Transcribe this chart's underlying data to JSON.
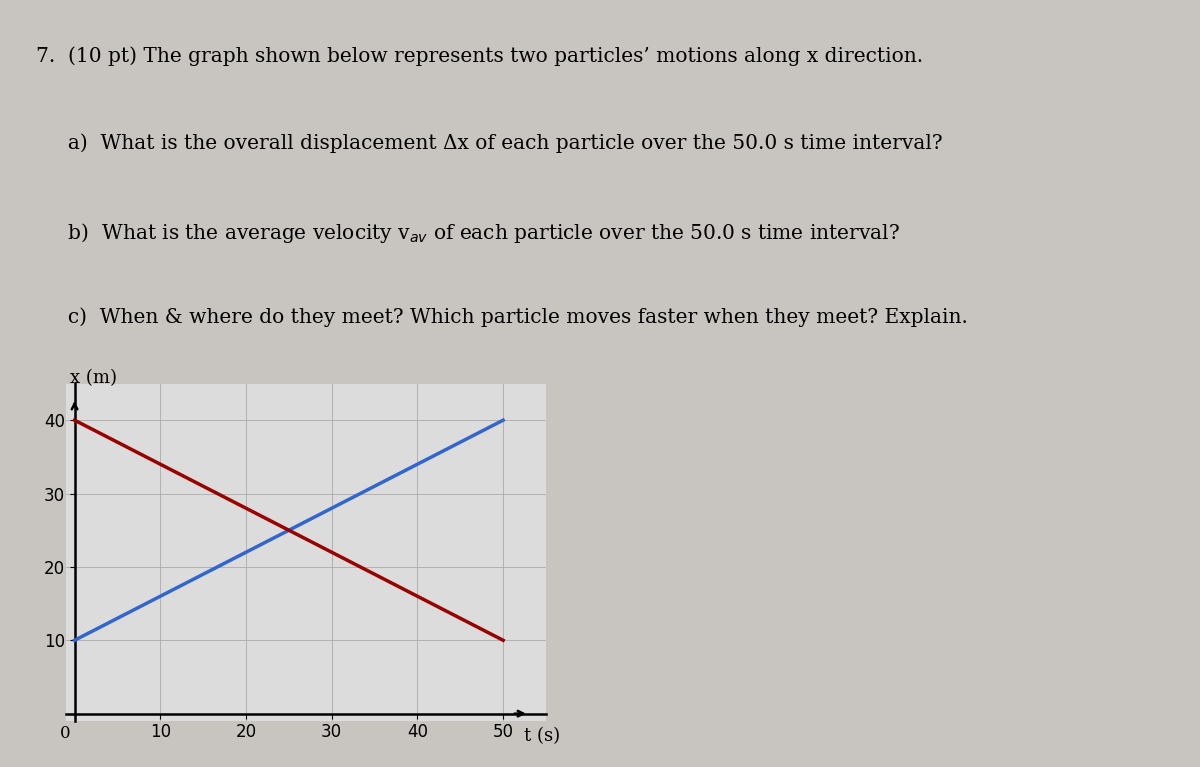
{
  "blue_line": {
    "t": [
      0,
      50
    ],
    "x": [
      10,
      40
    ],
    "color": "#3366cc",
    "linewidth": 2.5
  },
  "red_line": {
    "t": [
      0,
      50
    ],
    "x": [
      40,
      10
    ],
    "color": "#990000",
    "linewidth": 2.5
  },
  "xlim": [
    -1,
    55
  ],
  "ylim": [
    -1,
    45
  ],
  "xticks": [
    0,
    10,
    20,
    30,
    40,
    50
  ],
  "yticks": [
    0,
    10,
    20,
    30,
    40
  ],
  "xlabel": "t (s)",
  "ylabel": "x (m)",
  "grid_color": "#aaaaaa",
  "grid_linewidth": 0.6,
  "graph_background": "#dcdcdc",
  "figure_background": "#c8c4c0",
  "text_fontsize": 14.5,
  "axis_label_fontsize": 13,
  "tick_fontsize": 12
}
